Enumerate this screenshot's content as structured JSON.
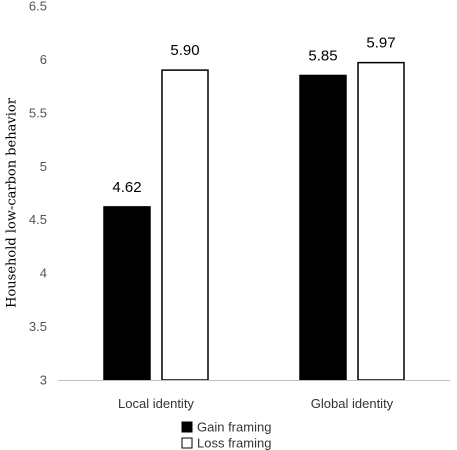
{
  "chart_data": {
    "type": "bar",
    "categories": [
      "Local identity",
      "Global identity"
    ],
    "series": [
      {
        "name": "Gain framing",
        "values": [
          4.62,
          5.85
        ],
        "labels": [
          "4.62",
          "5.85"
        ],
        "color": "#000000"
      },
      {
        "name": "Loss framing",
        "values": [
          5.9,
          5.97
        ],
        "labels": [
          "5.90",
          "5.97"
        ],
        "color": "#ffffff"
      }
    ],
    "title": "",
    "xlabel": "",
    "ylabel": "Household low-carbon behavior",
    "ylim": [
      3,
      6.5
    ],
    "yticks": [
      "3",
      "3.5",
      "4",
      "4.5",
      "5",
      "5.5",
      "6",
      "6.5"
    ],
    "legend_position": "bottom",
    "grid": false
  }
}
